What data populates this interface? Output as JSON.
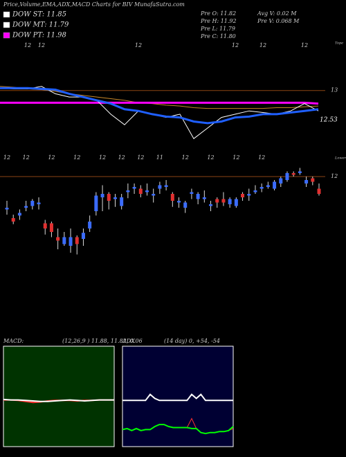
{
  "chart_data": [
    {
      "type": "line",
      "title": "Price,Volume,EMA,ADX,MACD Charts for BIV MunafaSutra.com",
      "legend_items": [
        {
          "label": "DOW ST: 11.85",
          "color": "#ffffff"
        },
        {
          "label": "DOW MT: 11.79",
          "color": "#ffffff"
        },
        {
          "label": "DOW PT: 11.98",
          "color": "#ff00ff"
        }
      ],
      "stats": [
        "Pre  O: 11.82",
        "Pre  H: 11.92",
        "Pre  L: 11.79",
        "Pre  C: 11.80",
        "Avg V: 0.02  M",
        "Pre  V: 0.068  M"
      ],
      "annotations": [
        "12.53",
        "Tope",
        "Lower"
      ],
      "categories": [
        null,
        null,
        "12",
        "12",
        null,
        null,
        null,
        null,
        null,
        null,
        "12",
        null,
        null,
        null,
        null,
        null,
        null,
        "12",
        null,
        "12",
        null,
        null,
        "12",
        null
      ],
      "series": [
        {
          "color": "#c8882a",
          "width": 1,
          "values": [
            13.05,
            13.04,
            13.02,
            13.01,
            12.99,
            12.96,
            12.94,
            12.92,
            12.9,
            12.88,
            12.85,
            12.84,
            12.82,
            12.81,
            12.79,
            12.78,
            12.78,
            12.78,
            12.78,
            12.78,
            12.79,
            12.79,
            12.8,
            12.81
          ]
        },
        {
          "color": "#ff00ff",
          "width": 3,
          "values": [
            12.85,
            12.85,
            12.85,
            12.85,
            12.85,
            12.85,
            12.85,
            12.85,
            12.85,
            12.85,
            12.85,
            12.85,
            12.85,
            12.85,
            12.85,
            12.85,
            12.85,
            12.85,
            12.85,
            12.85,
            12.85,
            12.85,
            12.85,
            12.84
          ]
        },
        {
          "color": "#ffffff",
          "width": 1,
          "values": [
            13.03,
            13.02,
            13.02,
            13.05,
            12.96,
            12.92,
            12.92,
            12.88,
            12.71,
            12.58,
            12.75,
            12.71,
            12.67,
            12.71,
            12.41,
            12.54,
            12.67,
            12.71,
            12.75,
            12.73,
            12.71,
            12.75,
            12.84,
            12.75
          ]
        },
        {
          "color": "#1f5fff",
          "width": 3,
          "values": [
            13.03,
            13.03,
            13.03,
            13.02,
            13.01,
            12.96,
            12.92,
            12.88,
            12.84,
            12.77,
            12.75,
            12.71,
            12.68,
            12.67,
            12.62,
            12.6,
            12.62,
            12.67,
            12.68,
            12.71,
            12.71,
            12.73,
            12.75,
            12.77
          ]
        }
      ],
      "ylim": [
        12.2,
        13.6
      ],
      "yticks": [
        13
      ],
      "grid": true,
      "grid_color": "#8b4513"
    },
    {
      "type": "candlestick",
      "categories": [
        "12",
        null,
        null,
        "12",
        null,
        null,
        null,
        "12",
        null,
        null,
        null,
        "12",
        null,
        null,
        null,
        "12",
        null,
        null,
        "12",
        null,
        null,
        "12",
        null,
        null,
        "11",
        null,
        null,
        null,
        "12",
        null,
        null,
        null,
        "12",
        null,
        null,
        null,
        "12",
        null,
        null,
        null,
        "12",
        null,
        null,
        null,
        null,
        null,
        null,
        null,
        null,
        null
      ],
      "open": [
        11.62,
        11.52,
        11.55,
        11.64,
        11.66,
        11.68,
        11.46,
        11.46,
        11.3,
        11.22,
        11.2,
        11.3,
        11.28,
        11.4,
        11.6,
        11.76,
        11.8,
        11.74,
        11.66,
        11.82,
        11.86,
        11.86,
        11.82,
        11.78,
        11.86,
        11.88,
        11.8,
        11.7,
        11.64,
        11.8,
        11.74,
        11.74,
        11.66,
        11.74,
        11.74,
        11.68,
        11.66,
        11.8,
        11.78,
        11.82,
        11.86,
        11.88,
        11.86,
        11.92,
        11.96,
        12.04,
        12.04,
        11.92,
        11.98,
        11.86
      ],
      "high": [
        11.72,
        11.56,
        11.62,
        11.72,
        11.74,
        11.76,
        11.5,
        11.48,
        11.4,
        11.36,
        11.4,
        11.32,
        11.4,
        11.55,
        11.82,
        11.9,
        11.82,
        11.8,
        11.8,
        11.92,
        11.92,
        11.9,
        11.92,
        11.86,
        11.94,
        11.96,
        11.82,
        11.76,
        11.72,
        11.86,
        11.82,
        11.84,
        11.72,
        11.76,
        11.82,
        11.76,
        11.76,
        11.82,
        11.86,
        11.9,
        11.92,
        11.94,
        11.96,
        12.0,
        12.06,
        12.06,
        12.1,
        12.0,
        12.0,
        11.92
      ],
      "low": [
        11.56,
        11.45,
        11.5,
        11.6,
        11.62,
        11.62,
        11.33,
        11.3,
        11.16,
        11.2,
        11.12,
        11.1,
        11.2,
        11.36,
        11.55,
        11.6,
        11.62,
        11.65,
        11.62,
        11.75,
        11.8,
        11.76,
        11.78,
        11.7,
        11.8,
        11.84,
        11.65,
        11.64,
        11.58,
        11.74,
        11.68,
        11.7,
        11.6,
        11.64,
        11.66,
        11.64,
        11.64,
        11.72,
        11.72,
        11.8,
        11.82,
        11.86,
        11.84,
        11.88,
        11.94,
        12.0,
        12.02,
        11.88,
        11.9,
        11.78
      ],
      "close": [
        11.64,
        11.48,
        11.58,
        11.66,
        11.72,
        11.7,
        11.4,
        11.36,
        11.26,
        11.3,
        11.3,
        11.22,
        11.35,
        11.48,
        11.78,
        11.8,
        11.72,
        11.76,
        11.76,
        11.84,
        11.88,
        11.8,
        11.84,
        11.8,
        11.9,
        11.9,
        11.72,
        11.72,
        11.7,
        11.82,
        11.8,
        11.76,
        11.68,
        11.7,
        11.7,
        11.74,
        11.74,
        11.76,
        11.8,
        11.84,
        11.88,
        11.9,
        11.94,
        11.98,
        12.04,
        12.02,
        12.06,
        11.96,
        11.94,
        11.8
      ],
      "up_color": "#3b6cff",
      "down_color": "#e03030",
      "ylim": [
        11.0,
        13.56
      ],
      "yticks": [
        12
      ],
      "grid": true,
      "grid_color": "#8b4513"
    },
    {
      "type": "line",
      "title": "MACD:",
      "subtitle": "(12,26,9 ) 11.88, 11.82, 0.06",
      "background": "#003300",
      "series": [
        {
          "color": "#ff3030",
          "width": 2,
          "values": [
            -0.07,
            -0.07,
            -0.08,
            -0.1,
            -0.12,
            -0.11,
            -0.09,
            -0.08,
            -0.08,
            -0.08,
            -0.09,
            -0.08,
            -0.08,
            -0.07,
            -0.07,
            -0.07
          ]
        },
        {
          "color": "#ffffff",
          "width": 2,
          "values": [
            -0.06,
            -0.07,
            -0.07,
            -0.08,
            -0.09,
            -0.1,
            -0.1,
            -0.09,
            -0.08,
            -0.07,
            -0.08,
            -0.09,
            -0.08,
            -0.07,
            -0.07,
            -0.07
          ]
        }
      ],
      "ylim": [
        -1,
        1
      ]
    },
    {
      "type": "line",
      "title": "ADX",
      "subtitle": "(14  day) 0, +54, -54",
      "background": "#000033",
      "series": [
        {
          "color": "#ffffff",
          "width": 2,
          "values": [
            46,
            46,
            46,
            46,
            46,
            46,
            52,
            48,
            46,
            46,
            46,
            46,
            46,
            46,
            46,
            52,
            48,
            52,
            46,
            46,
            46,
            46,
            46,
            46,
            46
          ]
        },
        {
          "color": "#ff3030",
          "width": 1,
          "values": [
            17,
            18,
            16,
            18,
            16,
            17,
            17,
            20,
            22,
            22,
            20,
            19,
            19,
            19,
            19,
            28,
            18,
            14,
            13,
            14,
            14,
            15,
            15,
            16,
            18
          ]
        },
        {
          "color": "#00ff00",
          "width": 2,
          "values": [
            17,
            18,
            16,
            18,
            16,
            17,
            17,
            20,
            22,
            22,
            20,
            19,
            19,
            19,
            19,
            18,
            18,
            14,
            13,
            14,
            14,
            15,
            15,
            16,
            20
          ]
        }
      ],
      "ylim": [
        0,
        100
      ]
    }
  ]
}
